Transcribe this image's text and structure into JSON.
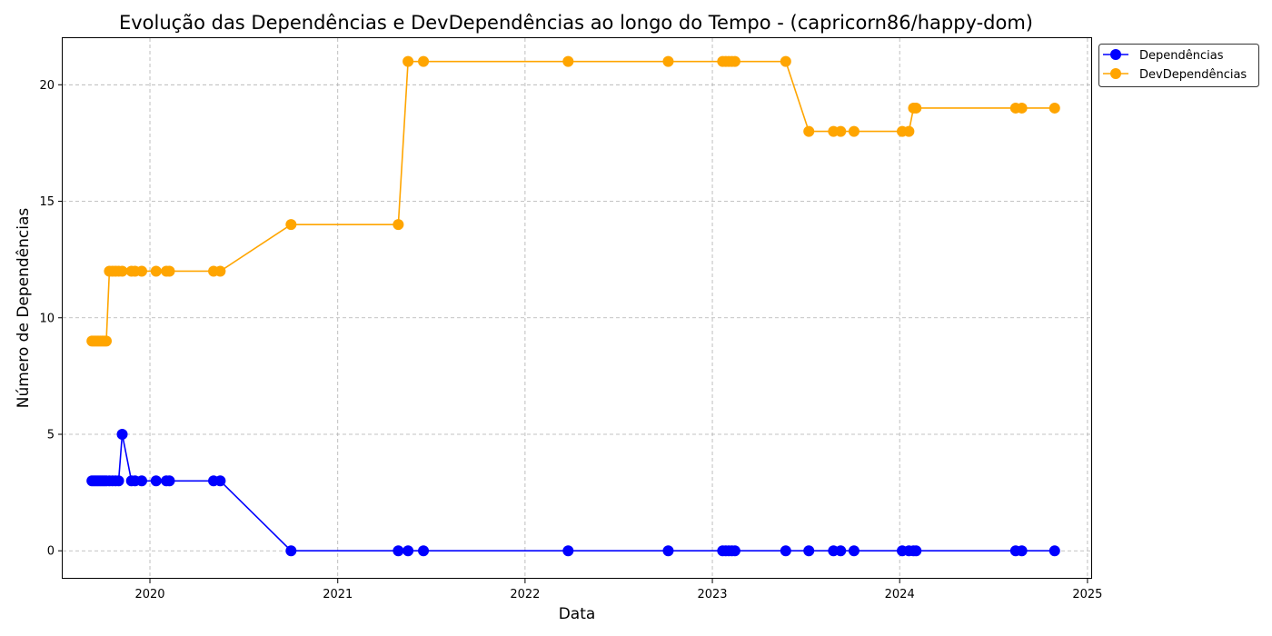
{
  "chart_data": {
    "type": "line",
    "title": "Evolução das Dependências e DevDependências ao longo do Tempo - (capricorn86/happy-dom)",
    "xlabel": "Data",
    "ylabel": "Número de Dependências",
    "xlim": [
      "2019-07-15",
      "2025-01-10"
    ],
    "ylim": [
      -1.2,
      22
    ],
    "x_ticks": [
      "2020",
      "2021",
      "2022",
      "2023",
      "2024",
      "2025"
    ],
    "x_tick_dates": [
      "2020-01-01",
      "2021-01-01",
      "2022-01-01",
      "2023-01-01",
      "2024-01-01",
      "2025-01-01"
    ],
    "y_ticks": [
      0,
      5,
      10,
      15,
      20
    ],
    "grid": true,
    "legend_position": "top-right outside plot",
    "series": [
      {
        "name": "Dependências",
        "color": "#0000ff",
        "marker": "circle",
        "x": [
          "2019-09-10",
          "2019-09-14",
          "2019-09-18",
          "2019-09-22",
          "2019-09-26",
          "2019-09-30",
          "2019-10-04",
          "2019-10-08",
          "2019-10-14",
          "2019-10-20",
          "2019-10-26",
          "2019-11-01",
          "2019-11-08",
          "2019-11-26",
          "2019-12-03",
          "2019-12-16",
          "2020-01-13",
          "2020-02-02",
          "2020-02-08",
          "2020-05-04",
          "2020-05-17",
          "2020-10-02",
          "2021-04-29",
          "2021-05-18",
          "2021-06-17",
          "2022-03-26",
          "2022-10-07",
          "2023-01-21",
          "2023-01-27",
          "2023-02-02",
          "2023-02-08",
          "2023-02-14",
          "2023-05-24",
          "2023-07-08",
          "2023-08-25",
          "2023-09-08",
          "2023-10-04",
          "2024-01-06",
          "2024-01-19",
          "2024-01-28",
          "2024-02-02",
          "2024-08-14",
          "2024-08-26",
          "2024-10-29"
        ],
        "y": [
          3,
          3,
          3,
          3,
          3,
          3,
          3,
          3,
          3,
          3,
          3,
          3,
          5,
          3,
          3,
          3,
          3,
          3,
          3,
          3,
          3,
          0,
          0,
          0,
          0,
          0,
          0,
          0,
          0,
          0,
          0,
          0,
          0,
          0,
          0,
          0,
          0,
          0,
          0,
          0,
          0,
          0,
          0,
          0
        ]
      },
      {
        "name": "DevDependências",
        "color": "#ffa500",
        "marker": "circle",
        "x": [
          "2019-09-10",
          "2019-09-14",
          "2019-09-18",
          "2019-09-22",
          "2019-09-26",
          "2019-09-30",
          "2019-10-04",
          "2019-10-08",
          "2019-10-14",
          "2019-10-20",
          "2019-10-26",
          "2019-11-01",
          "2019-11-08",
          "2019-11-26",
          "2019-12-03",
          "2019-12-16",
          "2020-01-13",
          "2020-02-02",
          "2020-02-08",
          "2020-05-04",
          "2020-05-17",
          "2020-10-02",
          "2021-04-29",
          "2021-05-18",
          "2021-06-17",
          "2022-03-26",
          "2022-10-07",
          "2023-01-21",
          "2023-01-27",
          "2023-02-02",
          "2023-02-08",
          "2023-02-14",
          "2023-05-24",
          "2023-07-08",
          "2023-08-25",
          "2023-09-08",
          "2023-10-04",
          "2024-01-06",
          "2024-01-19",
          "2024-01-28",
          "2024-02-02",
          "2024-08-14",
          "2024-08-26",
          "2024-10-29"
        ],
        "y": [
          9,
          9,
          9,
          9,
          9,
          9,
          9,
          9,
          12,
          12,
          12,
          12,
          12,
          12,
          12,
          12,
          12,
          12,
          12,
          12,
          12,
          14,
          14,
          21,
          21,
          21,
          21,
          21,
          21,
          21,
          21,
          21,
          21,
          18,
          18,
          18,
          18,
          18,
          18,
          19,
          19,
          19,
          19,
          19
        ]
      }
    ]
  }
}
